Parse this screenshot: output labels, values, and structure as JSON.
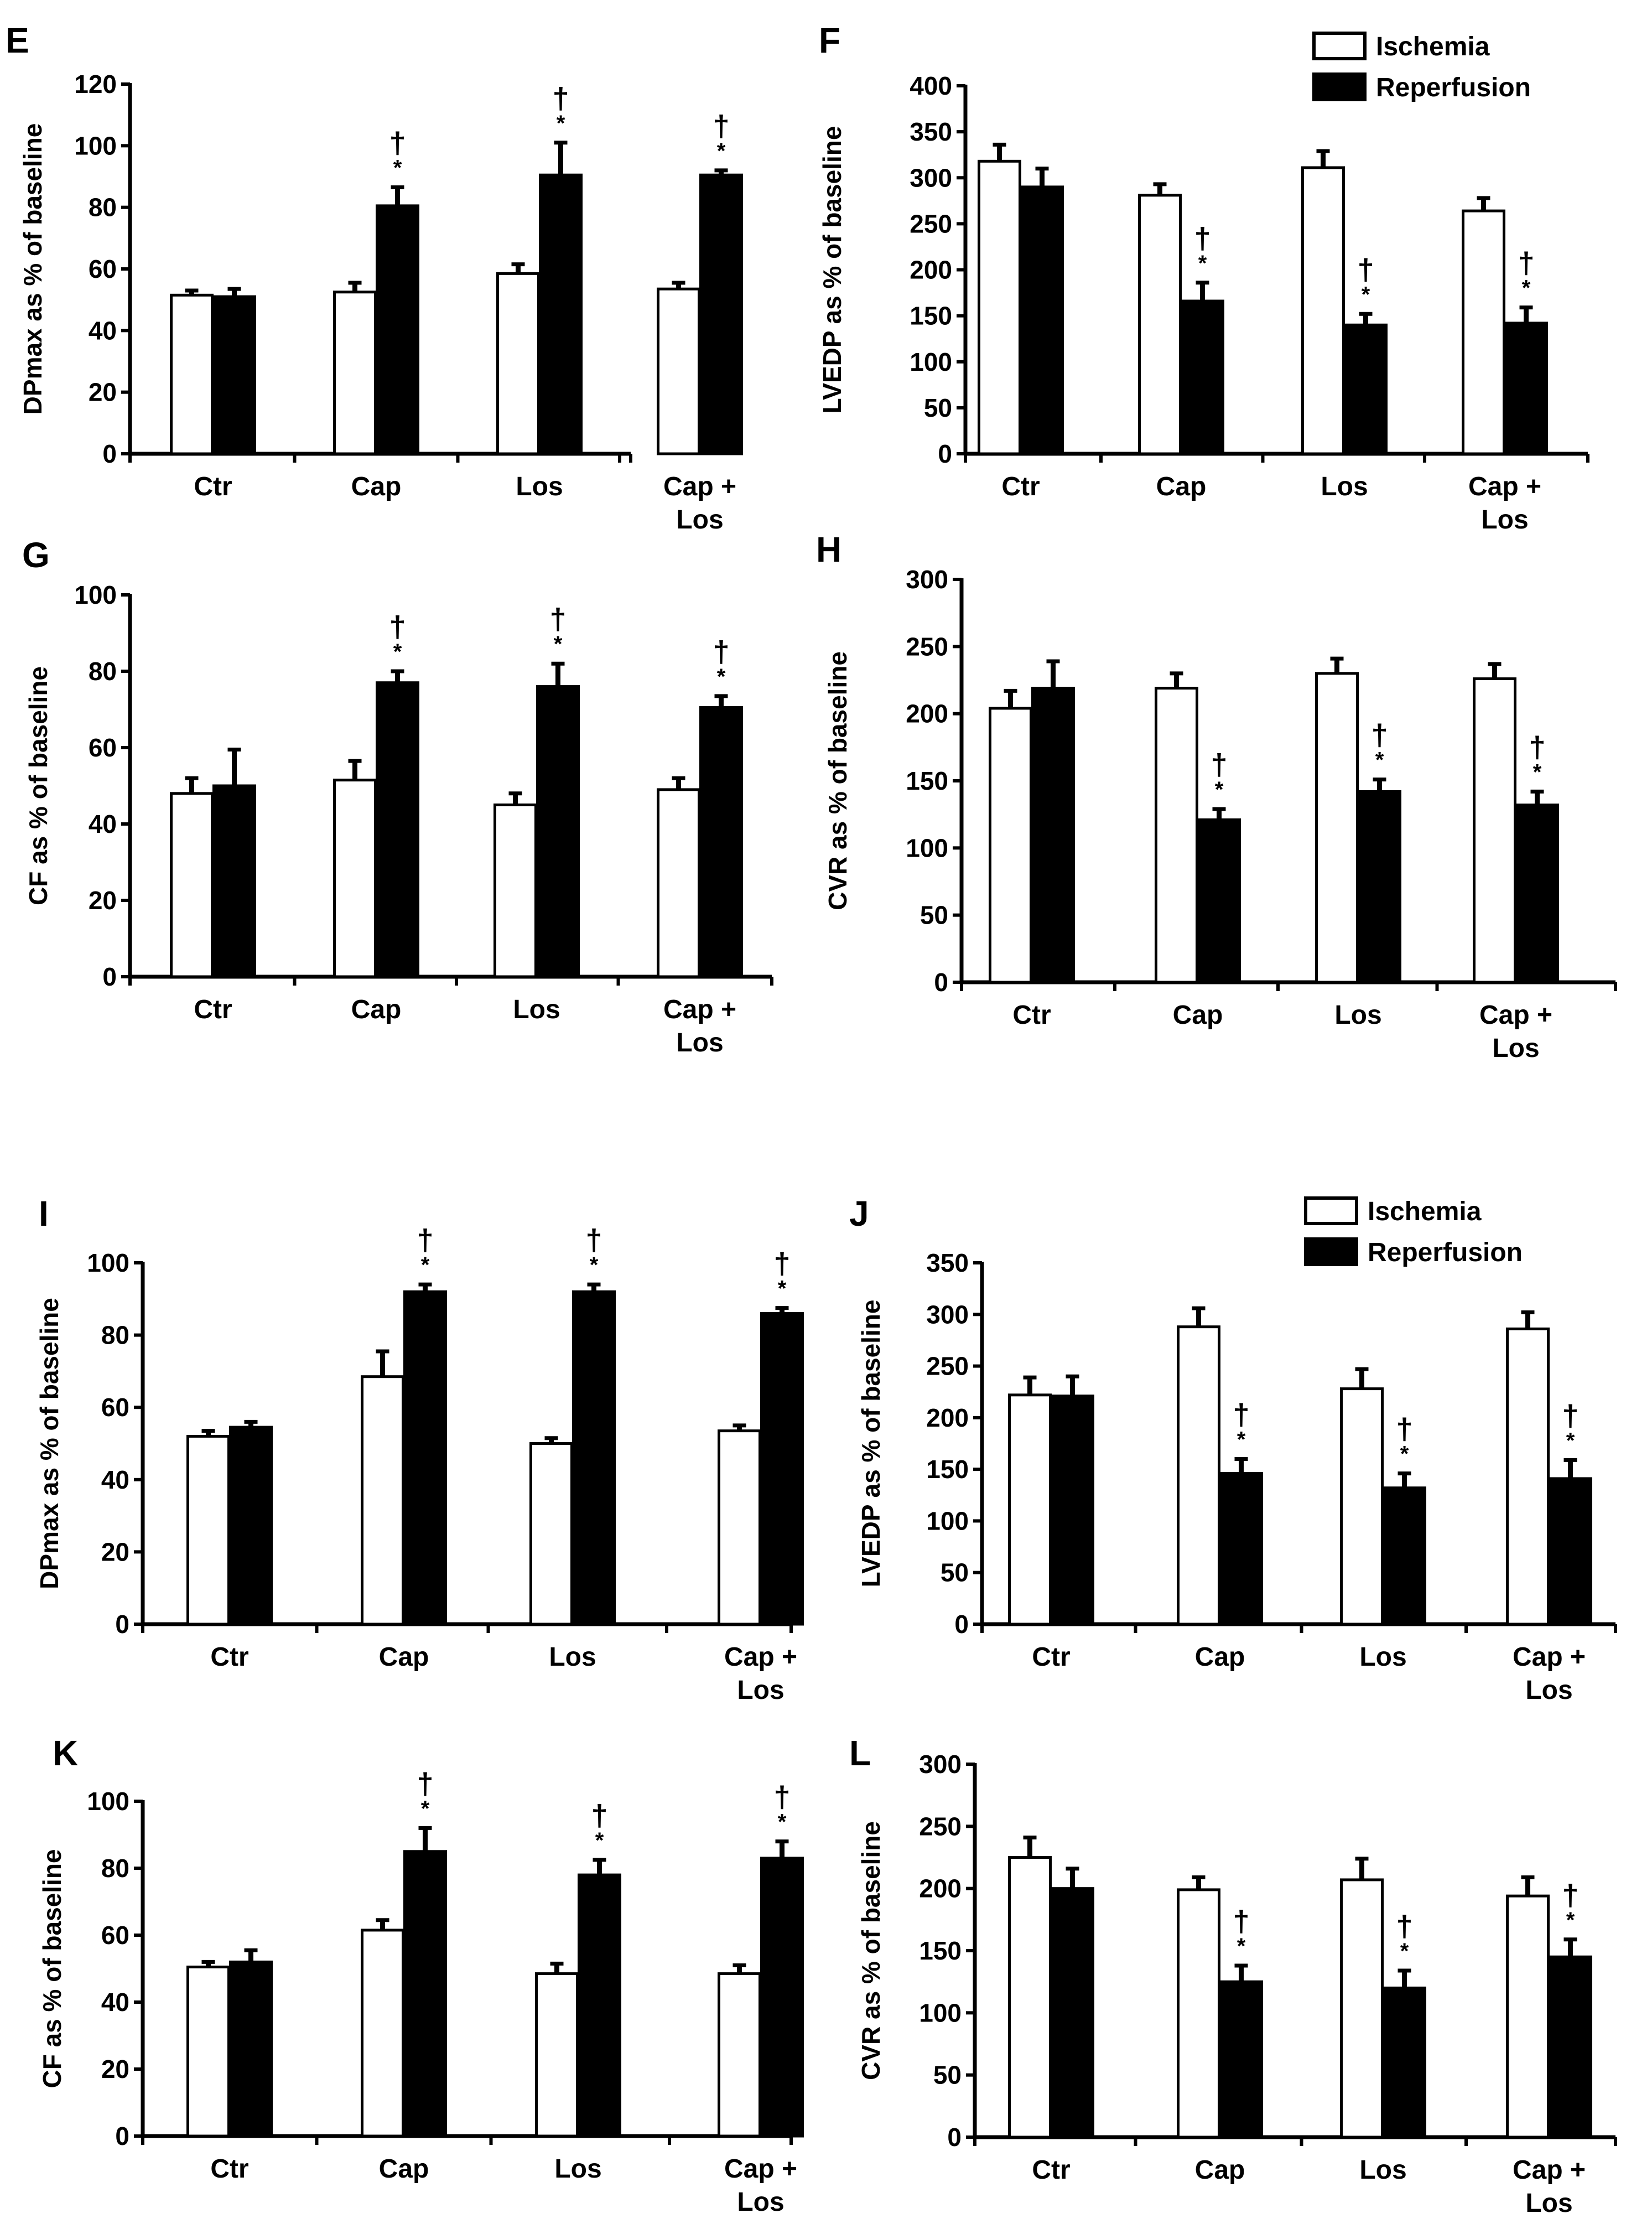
{
  "series_names": [
    "Ischemia",
    "Reperfusion"
  ],
  "series_colors": [
    "#ffffff",
    "#000000"
  ],
  "chart_data": [
    {
      "panel_label": "E",
      "type": "bar",
      "ylabel": "DPmax as % of baseline",
      "ylim": [
        0,
        120
      ],
      "yticks": [
        0,
        20,
        40,
        60,
        80,
        100,
        120
      ],
      "categories": [
        "Ctr",
        "Cap",
        "Los",
        "Cap +\nLos"
      ],
      "series": [
        {
          "name": "Ischemia",
          "values": [
            51.5,
            52.5,
            58.5,
            53.5
          ],
          "errors": [
            1.5,
            3,
            3,
            2
          ]
        },
        {
          "name": "Reperfusion",
          "values": [
            51,
            80.5,
            90.5,
            90.5
          ],
          "errors": [
            2.5,
            6,
            10.5,
            1.5
          ]
        }
      ],
      "annotations": [
        {
          "category": 1,
          "series": 1,
          "marks": [
            "*",
            "†"
          ]
        },
        {
          "category": 2,
          "series": 1,
          "marks": [
            "*",
            "†"
          ]
        },
        {
          "category": 3,
          "series": 1,
          "marks": [
            "*",
            "†"
          ]
        }
      ],
      "legend": false
    },
    {
      "panel_label": "F",
      "type": "bar",
      "ylabel": "LVEDP as % of baseline",
      "ylim": [
        0,
        400
      ],
      "yticks": [
        0,
        50,
        100,
        150,
        200,
        250,
        300,
        350,
        400
      ],
      "categories": [
        "Ctr",
        "Cap",
        "Los",
        "Cap +\nLos"
      ],
      "series": [
        {
          "name": "Ischemia",
          "values": [
            318,
            281,
            311,
            264
          ],
          "errors": [
            18,
            12,
            18,
            14
          ]
        },
        {
          "name": "Reperfusion",
          "values": [
            290,
            166,
            140,
            142
          ],
          "errors": [
            20,
            20,
            12,
            17
          ]
        }
      ],
      "annotations": [
        {
          "category": 1,
          "series": 1,
          "marks": [
            "*",
            "†"
          ]
        },
        {
          "category": 2,
          "series": 1,
          "marks": [
            "*",
            "†"
          ]
        },
        {
          "category": 3,
          "series": 1,
          "marks": [
            "*",
            "†"
          ]
        }
      ],
      "legend": true
    },
    {
      "panel_label": "G",
      "type": "bar",
      "ylabel": "CF as % of baseline",
      "ylim": [
        0,
        100
      ],
      "yticks": [
        0,
        20,
        40,
        60,
        80,
        100
      ],
      "categories": [
        "Ctr",
        "Cap",
        "Los",
        "Cap +\nLos"
      ],
      "series": [
        {
          "name": "Ischemia",
          "values": [
            48,
            51.5,
            45,
            49
          ],
          "errors": [
            4,
            5,
            3,
            3
          ]
        },
        {
          "name": "Reperfusion",
          "values": [
            50,
            77,
            76,
            70.5
          ],
          "errors": [
            9.5,
            3,
            6,
            3
          ]
        }
      ],
      "annotations": [
        {
          "category": 1,
          "series": 1,
          "marks": [
            "*",
            "†"
          ]
        },
        {
          "category": 2,
          "series": 1,
          "marks": [
            "*",
            "†"
          ]
        },
        {
          "category": 3,
          "series": 1,
          "marks": [
            "*",
            "†"
          ]
        }
      ],
      "legend": false
    },
    {
      "panel_label": "H",
      "type": "bar",
      "ylabel": "CVR as % of baseline",
      "ylim": [
        0,
        300
      ],
      "yticks": [
        0,
        50,
        100,
        150,
        200,
        250,
        300
      ],
      "categories": [
        "Ctr",
        "Cap",
        "Los",
        "Cap +\nLos"
      ],
      "series": [
        {
          "name": "Ischemia",
          "values": [
            204,
            219,
            230,
            226
          ],
          "errors": [
            13,
            11,
            11,
            11
          ]
        },
        {
          "name": "Reperfusion",
          "values": [
            219,
            121,
            142,
            132
          ],
          "errors": [
            20,
            8,
            9,
            10
          ]
        }
      ],
      "annotations": [
        {
          "category": 1,
          "series": 1,
          "marks": [
            "*",
            "†"
          ]
        },
        {
          "category": 2,
          "series": 1,
          "marks": [
            "*",
            "†"
          ]
        },
        {
          "category": 3,
          "series": 1,
          "marks": [
            "*",
            "†"
          ]
        }
      ],
      "legend": false
    },
    {
      "panel_label": "I",
      "type": "bar",
      "ylabel": "DPmax as % of baseline",
      "ylim": [
        0,
        100
      ],
      "yticks": [
        0,
        20,
        40,
        60,
        80,
        100
      ],
      "categories": [
        "Ctr",
        "Cap",
        "Los",
        "Cap +\nLos"
      ],
      "series": [
        {
          "name": "Ischemia",
          "values": [
            52,
            68.5,
            50,
            53.5
          ],
          "errors": [
            1.5,
            7,
            1.5,
            1.5
          ]
        },
        {
          "name": "Reperfusion",
          "values": [
            54.5,
            92,
            92,
            86
          ],
          "errors": [
            1.5,
            2,
            2,
            1.5
          ]
        }
      ],
      "annotations": [
        {
          "category": 1,
          "series": 1,
          "marks": [
            "*",
            "†"
          ]
        },
        {
          "category": 2,
          "series": 1,
          "marks": [
            "*",
            "†"
          ]
        },
        {
          "category": 3,
          "series": 1,
          "marks": [
            "*",
            "†"
          ]
        }
      ],
      "legend": false
    },
    {
      "panel_label": "J",
      "type": "bar",
      "ylabel": "LVEDP as % of baseline",
      "ylim": [
        0,
        350
      ],
      "yticks": [
        0,
        50,
        100,
        150,
        200,
        250,
        300,
        350
      ],
      "categories": [
        "Ctr",
        "Cap",
        "Los",
        "Cap +\nLos"
      ],
      "series": [
        {
          "name": "Ischemia",
          "values": [
            222,
            288,
            228,
            286
          ],
          "errors": [
            17,
            18,
            19,
            16
          ]
        },
        {
          "name": "Reperfusion",
          "values": [
            221,
            146,
            132,
            141
          ],
          "errors": [
            19,
            14,
            14,
            18
          ]
        }
      ],
      "annotations": [
        {
          "category": 1,
          "series": 1,
          "marks": [
            "*",
            "†"
          ]
        },
        {
          "category": 2,
          "series": 1,
          "marks": [
            "*",
            "†"
          ]
        },
        {
          "category": 3,
          "series": 1,
          "marks": [
            "*",
            "†"
          ]
        }
      ],
      "legend": true
    },
    {
      "panel_label": "K",
      "type": "bar",
      "ylabel": "CF as % of baseline",
      "ylim": [
        0,
        100
      ],
      "yticks": [
        0,
        20,
        40,
        60,
        80,
        100
      ],
      "categories": [
        "Ctr",
        "Cap",
        "Los",
        "Cap +\nLos"
      ],
      "series": [
        {
          "name": "Ischemia",
          "values": [
            50.5,
            61.5,
            48.5,
            48.5
          ],
          "errors": [
            1.5,
            3,
            3,
            2.5
          ]
        },
        {
          "name": "Reperfusion",
          "values": [
            52,
            85,
            78,
            83
          ],
          "errors": [
            3.5,
            7,
            4.5,
            5
          ]
        }
      ],
      "annotations": [
        {
          "category": 1,
          "series": 1,
          "marks": [
            "*",
            "†"
          ]
        },
        {
          "category": 2,
          "series": 1,
          "marks": [
            "*",
            "†"
          ]
        },
        {
          "category": 3,
          "series": 1,
          "marks": [
            "*",
            "†"
          ]
        }
      ],
      "legend": false
    },
    {
      "panel_label": "L",
      "type": "bar",
      "ylabel": "CVR as % of baseline",
      "ylim": [
        0,
        300
      ],
      "yticks": [
        0,
        50,
        100,
        150,
        200,
        250,
        300
      ],
      "categories": [
        "Ctr",
        "Cap",
        "Los",
        "Cap +\nLos"
      ],
      "series": [
        {
          "name": "Ischemia",
          "values": [
            225,
            199,
            207,
            194
          ],
          "errors": [
            16,
            10,
            17,
            15
          ]
        },
        {
          "name": "Reperfusion",
          "values": [
            200,
            125,
            120,
            145
          ],
          "errors": [
            16,
            13,
            14,
            14
          ]
        }
      ],
      "annotations": [
        {
          "category": 1,
          "series": 1,
          "marks": [
            "*",
            "†"
          ]
        },
        {
          "category": 2,
          "series": 1,
          "marks": [
            "*",
            "†"
          ]
        },
        {
          "category": 3,
          "series": 1,
          "marks": [
            "*",
            "†"
          ]
        }
      ],
      "legend": false
    }
  ]
}
